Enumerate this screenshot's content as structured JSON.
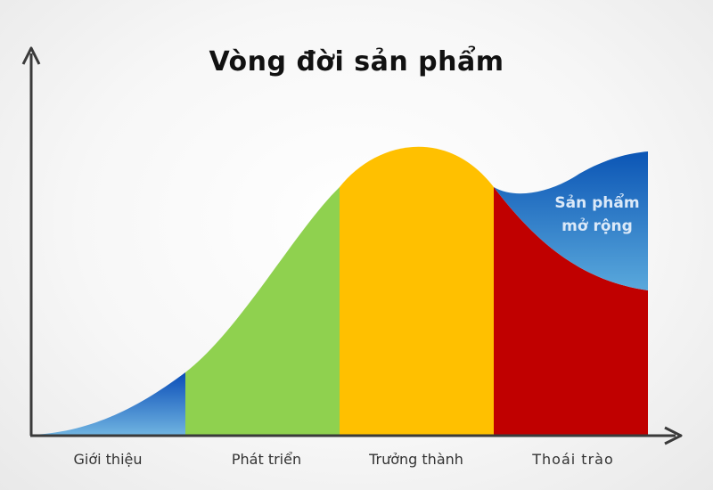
{
  "title": "Vòng đời sản phẩm",
  "stages": [
    {
      "label": "Giới thiệu",
      "color": "#1565c0"
    },
    {
      "label": "Phát triển",
      "color": "#8fd14f"
    },
    {
      "label": "Trưởng thành",
      "color": "#ffc000"
    },
    {
      "label": "Thoái trào",
      "color": "#c00000"
    }
  ],
  "extension": {
    "line1": "Sản phẩm",
    "line2": "mở rộng",
    "color": "#1565c0"
  }
}
